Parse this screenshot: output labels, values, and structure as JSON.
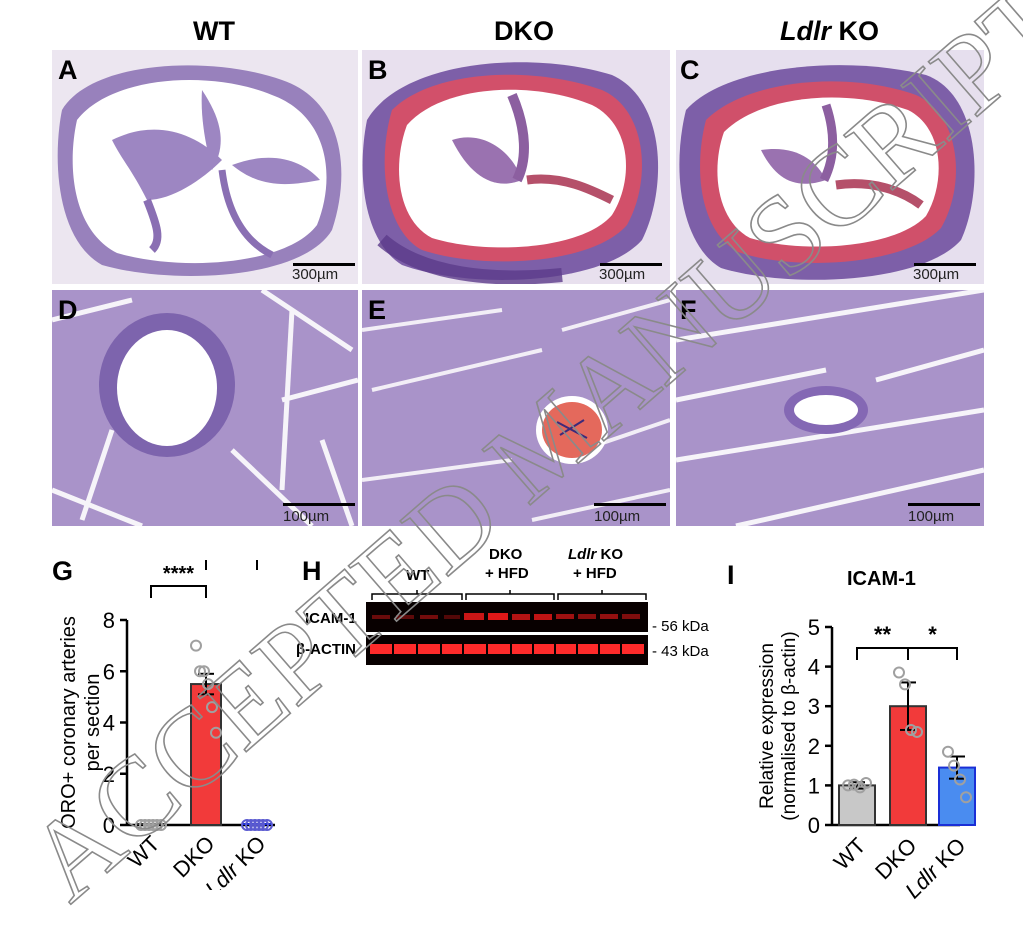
{
  "columns": [
    {
      "label": "WT",
      "italic": ""
    },
    {
      "label": " KO",
      "italic": "Ldlr",
      "plain": "DKO"
    },
    {
      "label": " KO",
      "italic": "Ldlr"
    }
  ],
  "col_titles": {
    "wt": "WT",
    "dko": "DKO",
    "ldlr_italic": "Ldlr",
    "ldlr_rest": " KO"
  },
  "panel_letters": {
    "a": "A",
    "b": "B",
    "c": "C",
    "d": "D",
    "e": "E",
    "f": "F",
    "g": "G",
    "h": "H",
    "i": "I"
  },
  "scale_bars": {
    "top": "300µm",
    "bottom": "100µm"
  },
  "watermark": "ACCEPTED MANUSCRIPT",
  "western_blot": {
    "groups": [
      "WT",
      "DKO",
      "+ HFD",
      "Ldlr",
      " KO",
      "+ HFD"
    ],
    "group_wt": "WT",
    "group_dko_1": "DKO",
    "group_dko_2": "+ HFD",
    "group_ldlr_italic": "Ldlr",
    "group_ldlr_rest": " KO",
    "group_ldlr_2": "+ HFD",
    "row1_label": "ICAM-1",
    "row2_label": "β-ACTIN",
    "row1_kda": "- 56 kDa",
    "row2_kda": "- 43 kDa",
    "band_color": "#ff2a2a"
  },
  "colors": {
    "wt": "#c8c8c8",
    "dko": "#f23a3a",
    "ldlr_blue": "#4a8cf0",
    "ldlr_border": "#1a2fd6"
  },
  "chart_data": [
    {
      "type": "bar",
      "panel": "G",
      "categories": [
        "WT",
        "DKO",
        "Ldlr KO"
      ],
      "category_labels": [
        {
          "plain": "WT"
        },
        {
          "plain": "DKO"
        },
        {
          "italic": "Ldlr",
          "plain": " KO"
        }
      ],
      "values": [
        0,
        5.5,
        0
      ],
      "errors": [
        0,
        0.4,
        0
      ],
      "points": [
        [
          0,
          0,
          0,
          0,
          0,
          0
        ],
        [
          7,
          6,
          6,
          5.5,
          4.6,
          3.6
        ],
        [
          0,
          0,
          0,
          0,
          0,
          0
        ]
      ],
      "ylabel_line1": "ORO+ coronary arteries",
      "ylabel_line2": "per section",
      "ylim": [
        0,
        8
      ],
      "yticks": [
        "0",
        "2",
        "4",
        "6",
        "8"
      ],
      "significance": [
        {
          "from": 0,
          "to": 1,
          "label": "****"
        },
        {
          "from": 1,
          "to": 2,
          "label": "****"
        }
      ]
    },
    {
      "type": "bar",
      "panel": "I",
      "title": "ICAM-1",
      "categories": [
        "WT",
        "DKO",
        "Ldlr KO"
      ],
      "category_labels": [
        {
          "plain": "WT"
        },
        {
          "plain": "DKO"
        },
        {
          "italic": "Ldlr",
          "plain": " KO"
        }
      ],
      "values": [
        1.0,
        3.0,
        1.45
      ],
      "errors": [
        0.08,
        0.6,
        0.28
      ],
      "points": [
        [
          1.0,
          1.02,
          0.95,
          1.06
        ],
        [
          3.85,
          3.55,
          2.4,
          2.35
        ],
        [
          1.85,
          1.5,
          1.15,
          0.7
        ]
      ],
      "ylabel_line1": "Relative expression",
      "ylabel_line2": "(normalised to β-actin)",
      "ylim": [
        0,
        5
      ],
      "yticks": [
        "0",
        "1",
        "2",
        "3",
        "4",
        "5"
      ],
      "significance": [
        {
          "from": 0,
          "to": 1,
          "label": "**"
        },
        {
          "from": 1,
          "to": 2,
          "label": "*"
        }
      ]
    }
  ]
}
